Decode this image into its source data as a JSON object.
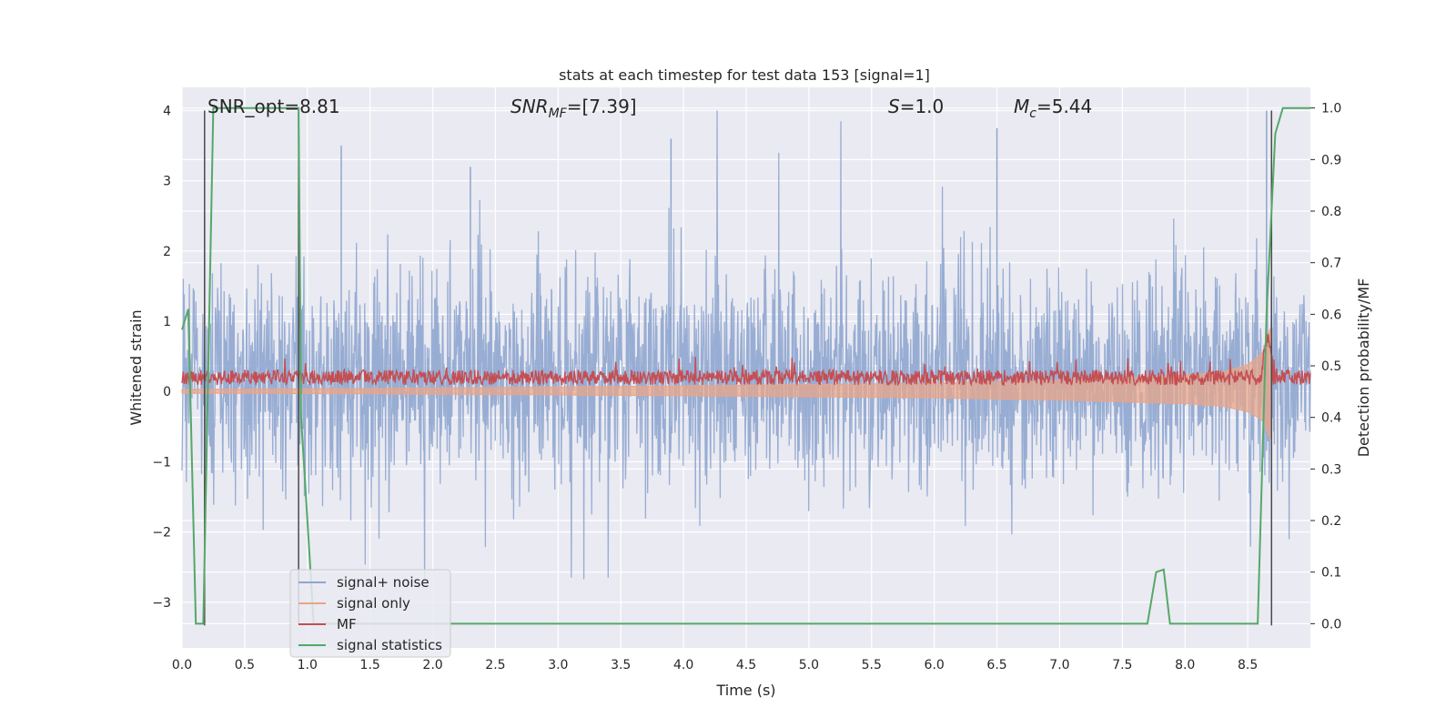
{
  "chart_data": {
    "type": "line",
    "title": "stats at each timestep for test data 153 [signal=1]",
    "xlabel": "Time (s)",
    "ylabel_left": "Whitened strain",
    "ylabel_right": "Detection probability/MF",
    "xlim": [
      0.0,
      9.0
    ],
    "ylim_left": [
      -3.65,
      4.33
    ],
    "ylim_right": [
      -0.047,
      1.04
    ],
    "x_ticks": [
      "0.0",
      "0.5",
      "1.0",
      "1.5",
      "2.0",
      "2.5",
      "3.0",
      "3.5",
      "4.0",
      "4.5",
      "5.0",
      "5.5",
      "6.0",
      "6.5",
      "7.0",
      "7.5",
      "8.0",
      "8.5"
    ],
    "y_ticks_left": [
      "−3",
      "−2",
      "−1",
      "0",
      "1",
      "2",
      "3",
      "4"
    ],
    "y_ticks_right": [
      "0.0",
      "0.1",
      "0.2",
      "0.3",
      "0.4",
      "0.5",
      "0.6",
      "0.7",
      "0.8",
      "0.9",
      "1.0"
    ],
    "grid": true,
    "legend_position": "lower-left",
    "annotations": {
      "snr_opt": "SNR_opt=8.81",
      "snr_mf_main": "SNR",
      "snr_mf_sub": "MF",
      "snr_mf_value": "=[7.39]",
      "s_main": "S",
      "s_value": "=1.0",
      "mc_main": "M",
      "mc_sub": "c",
      "mc_value": "=5.44"
    },
    "event_markers": {
      "x": [
        0.18,
        0.93,
        8.69
      ],
      "y_range": [
        -3.33,
        4.0
      ],
      "color": "#4a4a4a"
    },
    "series": [
      {
        "name": "signal+ noise",
        "axis": "left",
        "color": "#8fa6cf",
        "description_range": [
          -3.3,
          4.0
        ],
        "notable_peaks": [
          [
            0.18,
            2.5
          ],
          [
            1.27,
            3.5
          ],
          [
            2.3,
            3.2
          ],
          [
            3.9,
            3.6
          ],
          [
            6.5,
            3.75
          ],
          [
            8.65,
            4.0
          ]
        ]
      },
      {
        "name": "signal only",
        "axis": "left",
        "color": "#e8a58a",
        "envelope": {
          "x": [
            0.0,
            2.0,
            4.0,
            6.0,
            7.0,
            8.0,
            8.3,
            8.5,
            8.62,
            8.68
          ],
          "amp": [
            0.03,
            0.05,
            0.08,
            0.12,
            0.16,
            0.23,
            0.28,
            0.38,
            0.55,
            0.9
          ]
        }
      },
      {
        "name": "MF",
        "axis": "left",
        "color": "#c44e52",
        "baseline": 0.2,
        "spread": 0.18
      },
      {
        "name": "signal statistics",
        "axis": "right",
        "color": "#55a868",
        "x": [
          0.0,
          0.05,
          0.11,
          0.17,
          0.25,
          0.93,
          0.95,
          1.0,
          1.05,
          7.7,
          7.77,
          7.83,
          7.88,
          8.58,
          8.65,
          8.72,
          8.78,
          9.0
        ],
        "values": [
          0.57,
          0.61,
          0.0,
          0.0,
          1.0,
          1.0,
          0.4,
          0.2,
          0.0,
          0.0,
          0.1,
          0.105,
          0.0,
          0.0,
          0.6,
          0.95,
          1.0,
          1.0
        ]
      }
    ]
  }
}
